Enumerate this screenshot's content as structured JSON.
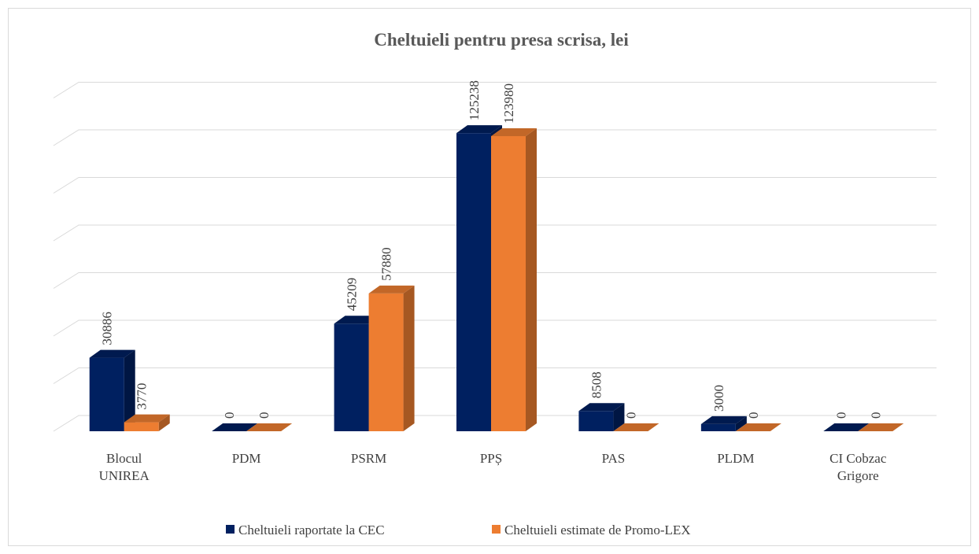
{
  "chart_data": {
    "type": "bar3d",
    "title": "Cheltuieli pentru presa scrisa, lei",
    "categories": [
      "Blocul UNIREA",
      "PDM",
      "PSRM",
      "PPȘ",
      "PAS",
      "PLDM",
      "CI Cobzac Grigore"
    ],
    "series": [
      {
        "name": "Cheltuieli raportate la CEC",
        "color": "#002060",
        "values": [
          30886,
          0,
          45209,
          125238,
          8508,
          3000,
          0
        ]
      },
      {
        "name": "Cheltuieli estimate de Promo-LEX",
        "color": "#ED7D31",
        "values": [
          3770,
          0,
          57880,
          123980,
          0,
          0,
          0
        ]
      }
    ],
    "ylim": [
      0,
      140000
    ],
    "yticks": [
      0,
      20000,
      40000,
      60000,
      80000,
      100000,
      120000,
      140000
    ],
    "grid": true,
    "legend": "bottom"
  }
}
